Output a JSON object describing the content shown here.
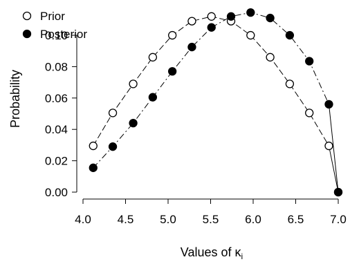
{
  "chart_data": {
    "type": "line",
    "title": "",
    "xlabel": "Values of κ",
    "xlabel_subscript": "i",
    "ylabel": "Probability",
    "xlim": [
      4.0,
      7.0
    ],
    "ylim": [
      0.0,
      0.115
    ],
    "xticks": [
      "4.0",
      "4.5",
      "5.0",
      "5.5",
      "6.0",
      "6.5",
      "7.0"
    ],
    "yticks": [
      "0.00",
      "0.02",
      "0.04",
      "0.06",
      "0.08",
      "0.10"
    ],
    "legend_position": "top-left",
    "grid": false,
    "series": [
      {
        "name": "Prior",
        "marker": "open-circle",
        "x": [
          4.12,
          4.35,
          4.59,
          4.82,
          5.05,
          5.28,
          5.51,
          5.74,
          5.97,
          6.2,
          6.43,
          6.66,
          6.89,
          7.0
        ],
        "y": [
          0.0295,
          0.0505,
          0.069,
          0.086,
          0.1,
          0.109,
          0.112,
          0.109,
          0.1,
          0.086,
          0.069,
          0.0505,
          0.0295,
          0.0
        ]
      },
      {
        "name": "Posterior",
        "marker": "filled-circle",
        "x": [
          4.12,
          4.35,
          4.59,
          4.82,
          5.05,
          5.28,
          5.51,
          5.74,
          5.97,
          6.2,
          6.43,
          6.66,
          6.89,
          7.0
        ],
        "y": [
          0.0155,
          0.029,
          0.044,
          0.0605,
          0.077,
          0.0925,
          0.105,
          0.112,
          0.1145,
          0.111,
          0.1,
          0.0835,
          0.056,
          0.0
        ]
      }
    ]
  }
}
